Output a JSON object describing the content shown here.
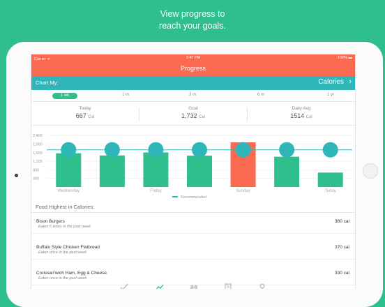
{
  "promo": {
    "line1": "View progress to",
    "line2": "reach your goals."
  },
  "status": {
    "carrier": "Carrier ᯤ",
    "time": "3:47 PM",
    "battery": "100% ▬"
  },
  "nav": {
    "title": "Progress"
  },
  "chart_selector": {
    "label": "Chart My:",
    "value": "Calories",
    "chevron": "›"
  },
  "ranges": [
    {
      "label": "1 wk",
      "selected": true
    },
    {
      "label": "1 m",
      "selected": false
    },
    {
      "label": "3 m",
      "selected": false
    },
    {
      "label": "6 m",
      "selected": false
    },
    {
      "label": "1 yr",
      "selected": false
    }
  ],
  "stats": [
    {
      "title": "Today",
      "value": "667",
      "unit": "Cal"
    },
    {
      "title": "Goal",
      "value": "1,732",
      "unit": "Cal"
    },
    {
      "title": "Daily Avg",
      "value": "1514",
      "unit": "Cal"
    }
  ],
  "chart_data": {
    "type": "bar",
    "categories": [
      "Wednesday",
      "",
      "Friday",
      "",
      "Sunday",
      "",
      "Today"
    ],
    "values": [
      1570,
      1470,
      1610,
      1460,
      2080,
      1410,
      670
    ],
    "recommended": [
      1732,
      1732,
      1732,
      1732,
      1732,
      1732,
      1732
    ],
    "y_ticks": [
      "2,400",
      "2,000",
      "1,600",
      "1,200",
      "800",
      "400"
    ],
    "ylim": [
      0,
      2600
    ],
    "legend": "Recommended",
    "colors": {
      "bar": "#2fbf8c",
      "over": "#f96a50",
      "dot": "#2fb6b8"
    }
  },
  "foods": {
    "title": "Food Highest in Calories:",
    "items": [
      {
        "name": "Bison Burgers",
        "sub": "Eaten 6 times in the past week",
        "cal": "380 cal"
      },
      {
        "name": "Buffalo Style Chicken Flatbread",
        "sub": "Eaten once in the past week",
        "cal": "370 cal"
      },
      {
        "name": "Croissan'wich Ham, Egg & Cheese",
        "sub": "Eaten once in the past week",
        "cal": "330 cal"
      }
    ]
  },
  "tabs": [
    "check-icon",
    "trend-icon",
    "dumbbell-icon",
    "notes-icon",
    "lightbulb-icon"
  ]
}
